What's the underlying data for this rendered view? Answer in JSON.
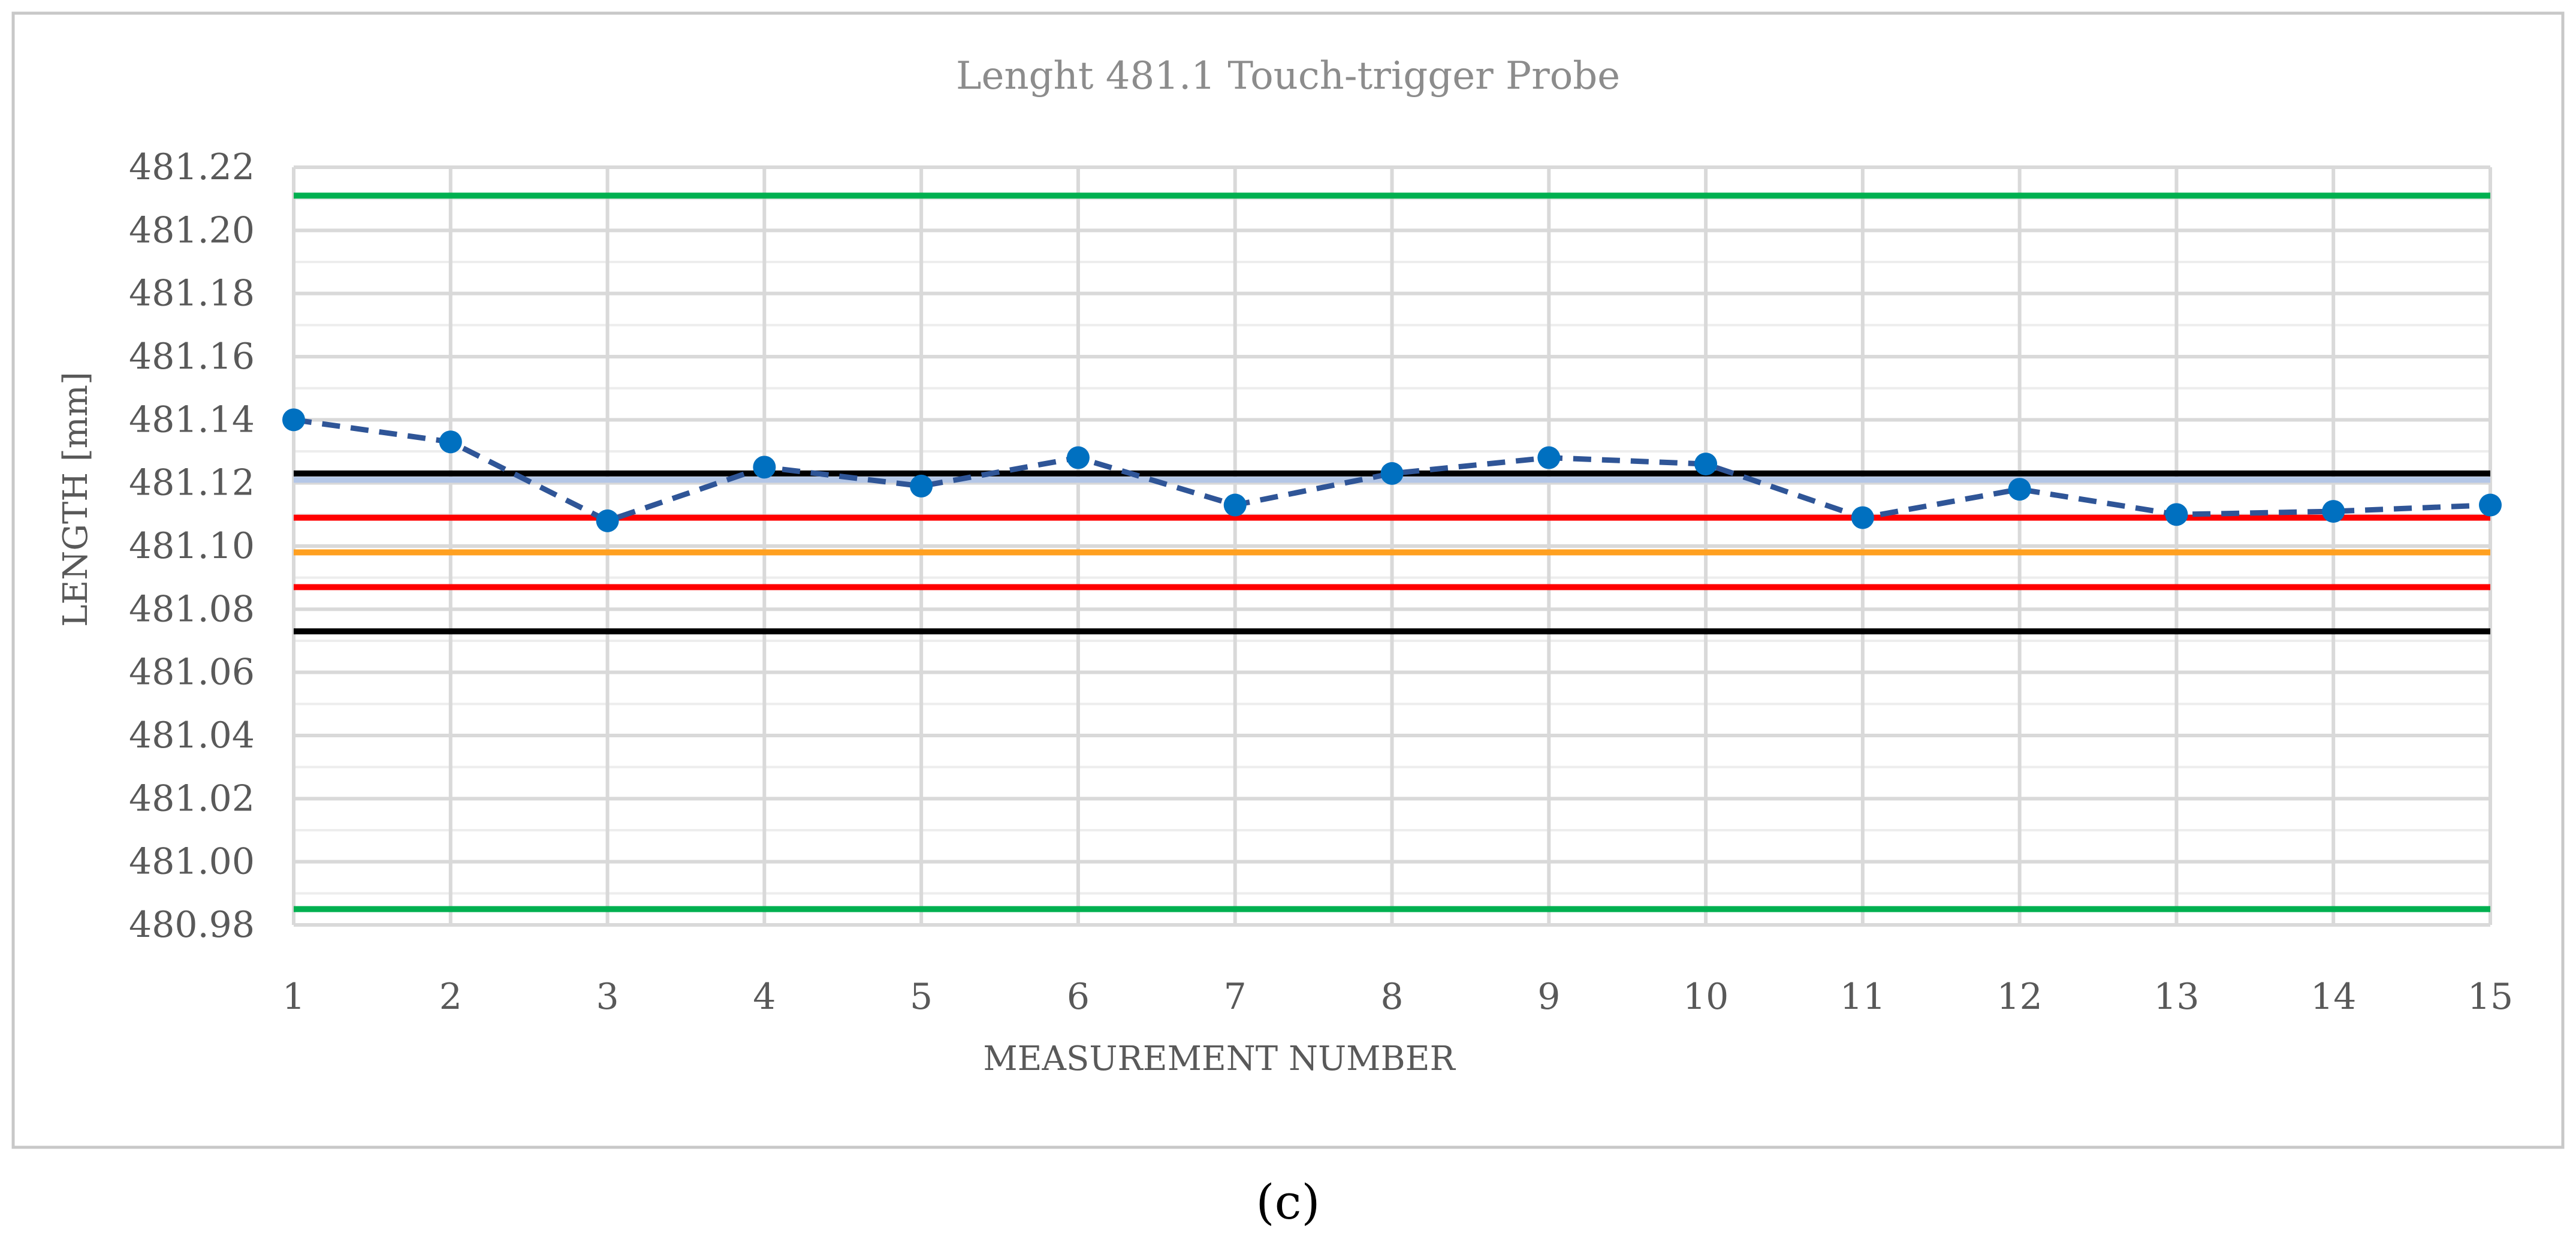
{
  "caption": "(c)",
  "chart_data": {
    "type": "line",
    "title": "Lenght 481.1 Touch-trigger Probe",
    "xlabel": "MEASUREMENT NUMBER",
    "ylabel": "LENGTH [mm]",
    "ylim": [
      480.98,
      481.22
    ],
    "ytick_step": 0.02,
    "yticks": [
      "480.98",
      "481.00",
      "481.02",
      "481.04",
      "481.06",
      "481.08",
      "481.10",
      "481.12",
      "481.14",
      "481.16",
      "481.18",
      "481.20",
      "481.22"
    ],
    "x": [
      1,
      2,
      3,
      4,
      5,
      6,
      7,
      8,
      9,
      10,
      11,
      12,
      13,
      14,
      15
    ],
    "grid": true,
    "series": [
      {
        "values": [
          481.14,
          481.133,
          481.108,
          481.125,
          481.119,
          481.128,
          481.113,
          481.123,
          481.128,
          481.126,
          481.109,
          481.118,
          481.11,
          481.111,
          481.113
        ],
        "color": "#0070c0",
        "line_color": "#2f5597",
        "style": "dashed-with-markers"
      }
    ],
    "reference_lines": [
      {
        "value": 481.211,
        "color": "#00b050"
      },
      {
        "value": 481.123,
        "color": "#000000"
      },
      {
        "value": 481.121,
        "color": "#b4c7e7"
      },
      {
        "value": 481.109,
        "color": "#ff0000"
      },
      {
        "value": 481.098,
        "color": "#ffa020"
      },
      {
        "value": 481.087,
        "color": "#ff0000"
      },
      {
        "value": 481.073,
        "color": "#000000"
      },
      {
        "value": 480.985,
        "color": "#00b050"
      }
    ]
  }
}
